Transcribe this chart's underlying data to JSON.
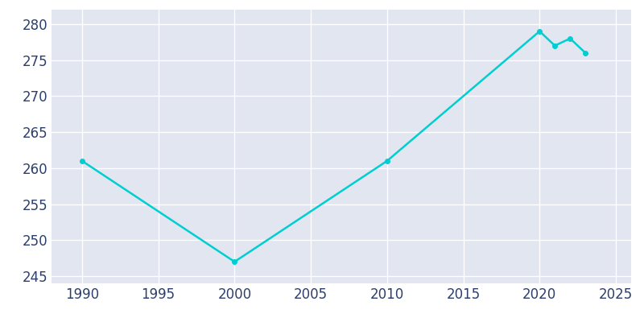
{
  "years": [
    1990,
    2000,
    2010,
    2020,
    2021,
    2022,
    2023
  ],
  "population": [
    261,
    247,
    261,
    279,
    277,
    278,
    276
  ],
  "line_color": "#00CED1",
  "background_color": "#ffffff",
  "plot_background_color": "#E2E6F0",
  "grid_color": "#ffffff",
  "xlim": [
    1988,
    2026
  ],
  "ylim": [
    244,
    282
  ],
  "xticks": [
    1990,
    1995,
    2000,
    2005,
    2010,
    2015,
    2020,
    2025
  ],
  "yticks": [
    245,
    250,
    255,
    260,
    265,
    270,
    275,
    280
  ],
  "linewidth": 1.8,
  "tick_color": "#2C3E6B",
  "tick_fontsize": 12
}
